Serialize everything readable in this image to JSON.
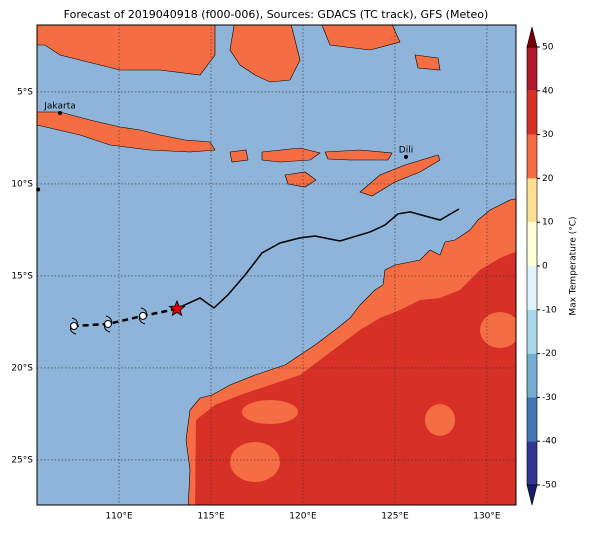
{
  "title": "Forecast of 2019040918 (f000-006), Sources: GDACS (TC track), GFS (Meteo)",
  "lonlim": [
    105.54,
    131.58
  ],
  "latlim": [
    -27.45,
    -1.36
  ],
  "lonticks": [
    {
      "value": 110,
      "label": "110°E"
    },
    {
      "value": 115,
      "label": "115°E"
    },
    {
      "value": 120,
      "label": "120°E"
    },
    {
      "value": 125,
      "label": "125°E"
    },
    {
      "value": 130,
      "label": "130°E"
    }
  ],
  "latticks": [
    {
      "value": -5,
      "label": "5°S"
    },
    {
      "value": -10,
      "label": "10°S"
    },
    {
      "value": -15,
      "label": "15°S"
    },
    {
      "value": -20,
      "label": "20°S"
    },
    {
      "value": -25,
      "label": "25°S"
    }
  ],
  "cities": [
    {
      "name": "Jakarta",
      "lon": 106.79,
      "lat": -6.14
    },
    {
      "name": "Dili",
      "lon": 125.6,
      "lat": -8.53
    },
    {
      "name": null,
      "lon": 105.6,
      "lat": -10.3
    }
  ],
  "track": {
    "lon": [
      128.48,
      127.45,
      126.64,
      125.83,
      125.16,
      124.46,
      123.65,
      122.01,
      120.65,
      119.84,
      118.75,
      117.77,
      116.85,
      115.92,
      115.16,
      114.4,
      113.21
    ],
    "lat": [
      -11.36,
      -11.96,
      -11.74,
      -11.52,
      -11.63,
      -12.23,
      -12.61,
      -13.1,
      -12.83,
      -12.93,
      -13.21,
      -13.75,
      -14.95,
      -16.03,
      -16.74,
      -16.2,
      -16.74
    ]
  },
  "current": {
    "lon": 113.15,
    "lat": -16.79
  },
  "forecast": {
    "lon": [
      113.15,
      111.3,
      109.4,
      107.55
    ],
    "lat": [
      -16.79,
      -17.17,
      -17.61,
      -17.72
    ]
  },
  "colorbar": {
    "label": "Max Temperature (°C)",
    "ticks": [
      50,
      40,
      30,
      20,
      10,
      0,
      -10,
      -20,
      -30,
      -40,
      -50
    ],
    "levels": [
      -50,
      -40,
      -30,
      -20,
      -10,
      0,
      10,
      20,
      30,
      40,
      50
    ],
    "colors": [
      "#313695",
      "#4575b4",
      "#74add1",
      "#abd9e9",
      "#e0f3f8",
      "#fefed8",
      "#fee090",
      "#f46d43",
      "#d73027",
      "#b2182b"
    ],
    "extend_colors": [
      "#1a1a6e",
      "#7f0000"
    ]
  }
}
